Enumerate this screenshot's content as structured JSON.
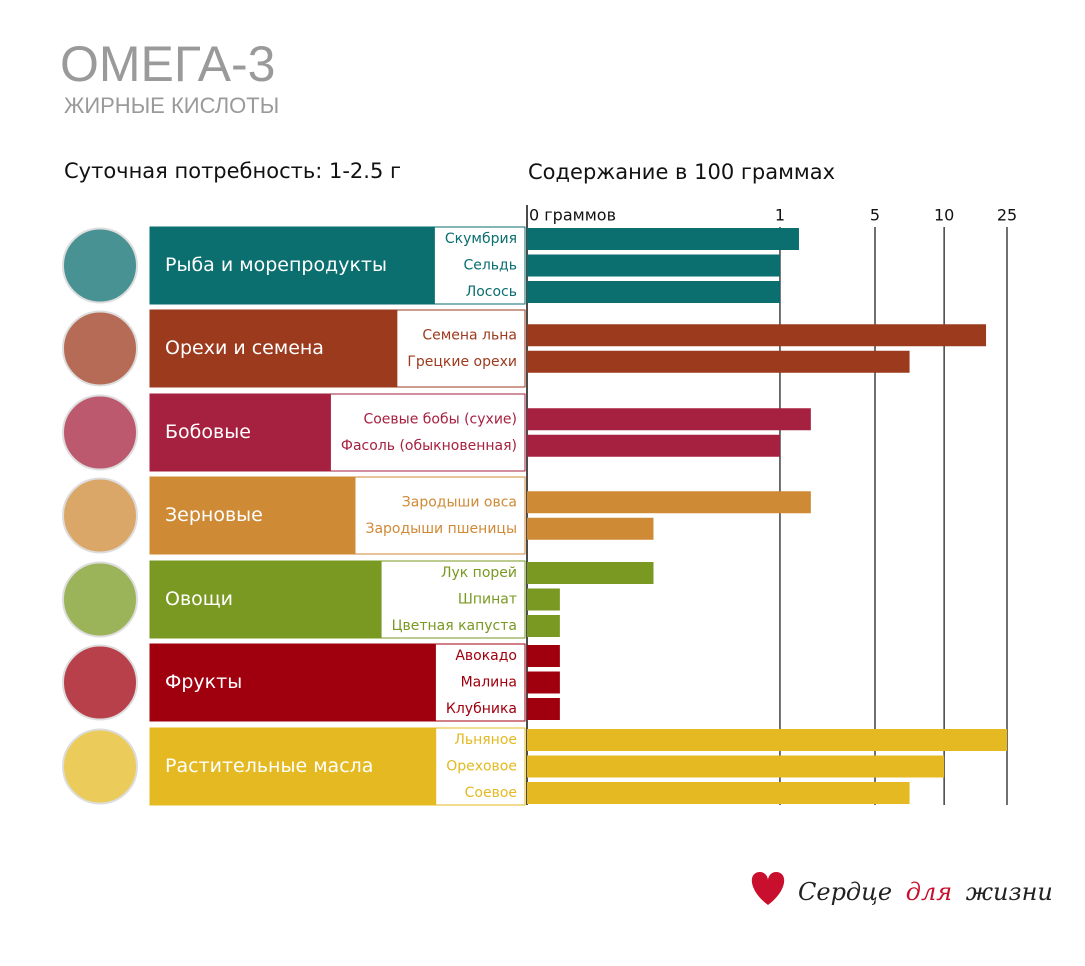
{
  "chart_data": {
    "type": "bar",
    "title": "ОМЕГА-3",
    "subtitle": "ЖИРНЫЕ КИСЛОТЫ",
    "left_heading": "Суточная потребность: 1-2.5 г",
    "axis_label": "Содержание в 100 граммах",
    "xlim": [
      0,
      25
    ],
    "xticks": [
      {
        "value": 0,
        "label": "0 граммов"
      },
      1,
      5,
      10,
      25
    ],
    "groups": [
      {
        "name": "Рыба и морепродукты",
        "color": "#0b6e6f",
        "items": [
          "Скумбрия",
          "Сельдь",
          "Лосось"
        ],
        "values": [
          1.8,
          1,
          1
        ]
      },
      {
        "name": "Орехи и семена",
        "color": "#9c3a1e",
        "items": [
          "Семена льна",
          "Грецкие орехи"
        ],
        "values": [
          20,
          7.5
        ]
      },
      {
        "name": "Бобовые",
        "color": "#a6213f",
        "items": [
          "Соевые бобы (сухие)",
          "Фасоль (обыкновенная)"
        ],
        "values": [
          2.3,
          1
        ]
      },
      {
        "name": "Зерновые",
        "color": "#cf8a36",
        "items": [
          "Зародыши овса",
          "Зародыши пшеницы"
        ],
        "values": [
          2.3,
          0.5
        ]
      },
      {
        "name": "Овощи",
        "color": "#7a9922",
        "items": [
          "Лук порей",
          "Шпинат",
          "Цветная капуста"
        ],
        "values": [
          0.5,
          0.13,
          0.13
        ]
      },
      {
        "name": "Фрукты",
        "color": "#a0000e",
        "items": [
          "Авокадо",
          "Малина",
          "Клубника"
        ],
        "values": [
          0.13,
          0.13,
          0.13
        ]
      },
      {
        "name": "Растительные масла",
        "color": "#e4b921",
        "items": [
          "Льняное",
          "Ореховое",
          "Соевое"
        ],
        "values": [
          25,
          10,
          7.5
        ]
      }
    ],
    "logo": [
      "Сердце",
      "для",
      "жизни"
    ]
  }
}
